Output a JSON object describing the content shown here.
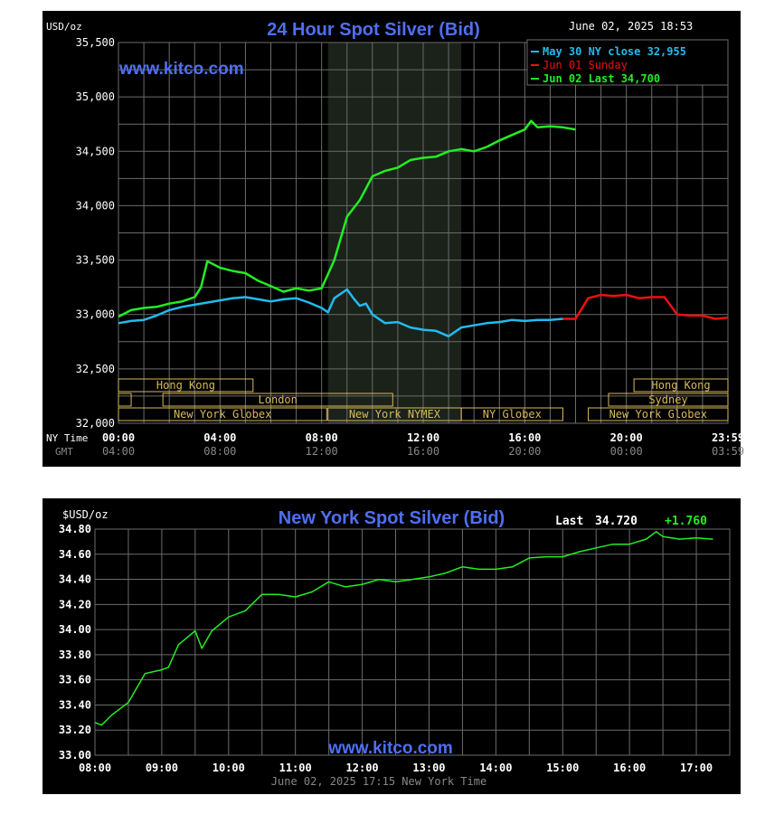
{
  "colors": {
    "background": "#000000",
    "grid": "#6b6b6b",
    "axis_text": "#ffffff",
    "title": "#4f6ff2",
    "watermark": "#4f6ff2",
    "may30": "#22bbee",
    "jun01": "#ee1111",
    "jun02": "#22ee22",
    "session_box": "#d9b95a",
    "session_text": "#d9b95a",
    "shade": "#1a221a",
    "gmt_text": "#888888"
  },
  "chart1": {
    "title": "24 Hour Spot Silver (Bid)",
    "unit": "USD/oz",
    "timestamp": "June 02, 2025 18:53",
    "watermark": "www.kitco.com",
    "legend": [
      {
        "text": "May 30 NY close 32,955",
        "color": "#22bbee"
      },
      {
        "text": "Jun 01 Sunday",
        "color": "#ee1111"
      },
      {
        "text": "Jun 02 Last 34,700",
        "color": "#22ee22"
      }
    ],
    "y_ticks": [
      "35,500",
      "35,000",
      "34,500",
      "34,000",
      "33,500",
      "33,000",
      "32,500",
      "32,000"
    ],
    "x_row1_label": "NY Time",
    "x_row2_label": "GMT",
    "x_ticks_ny": [
      "00:00",
      "04:00",
      "08:00",
      "12:00",
      "16:00",
      "20:00",
      "23:59"
    ],
    "x_ticks_gmt": [
      "04:00",
      "08:00",
      "12:00",
      "16:00",
      "20:00",
      "00:00",
      "03:59"
    ],
    "sessions": [
      {
        "label": "Hong Kong"
      },
      {
        "label": "London"
      },
      {
        "label": "New York Globex"
      },
      {
        "label": "New York NYMEX"
      },
      {
        "label": "NY Globex"
      },
      {
        "label": "Hong Kong"
      },
      {
        "label": "Sydney"
      },
      {
        "label": "New York Globex"
      }
    ]
  },
  "chart2": {
    "title": "New York Spot Silver (Bid)",
    "unit": "$USD/oz",
    "last_label": "Last",
    "last_value": "34.720",
    "change": "+1.760",
    "watermark": "www.kitco.com",
    "footer": "June 02, 2025 17:15 New York Time",
    "y_ticks": [
      "34.80",
      "34.60",
      "34.40",
      "34.20",
      "34.00",
      "33.80",
      "33.60",
      "33.40",
      "33.20",
      "33.00"
    ],
    "x_ticks": [
      "08:00",
      "09:00",
      "10:00",
      "11:00",
      "12:00",
      "13:00",
      "14:00",
      "15:00",
      "16:00",
      "17:00"
    ]
  },
  "chart_data": [
    {
      "type": "line",
      "title": "24 Hour Spot Silver (Bid)",
      "ylabel": "USD/oz",
      "xlabel": "NY Time",
      "ylim": [
        32000,
        35500
      ],
      "xlim": [
        0,
        24
      ],
      "grid": true,
      "legend": "top-right",
      "series": [
        {
          "name": "May 30 NY close 32,955",
          "color": "#22bbee",
          "x": [
            0,
            0.5,
            1,
            1.5,
            2,
            2.5,
            3,
            3.5,
            4,
            4.5,
            5,
            5.5,
            6,
            6.5,
            7,
            7.5,
            8,
            8.25,
            8.5,
            9,
            9.25,
            9.5,
            9.75,
            10,
            10.5,
            11,
            11.5,
            12,
            12.5,
            13,
            13.5,
            14,
            14.5,
            15,
            15.5,
            16,
            16.5,
            17,
            17.5
          ],
          "y": [
            32920,
            32940,
            32950,
            32990,
            33040,
            33070,
            33090,
            33110,
            33130,
            33150,
            33160,
            33140,
            33120,
            33140,
            33150,
            33110,
            33060,
            33020,
            33150,
            33230,
            33150,
            33080,
            33100,
            33000,
            32920,
            32930,
            32880,
            32860,
            32850,
            32800,
            32880,
            32900,
            32920,
            32930,
            32950,
            32940,
            32950,
            32950,
            32960
          ]
        },
        {
          "name": "Jun 01 Sunday",
          "color": "#ee1111",
          "x": [
            17.5,
            18,
            18.5,
            19,
            19.5,
            20,
            20.5,
            21,
            21.5,
            22,
            22.5,
            23,
            23.5,
            24
          ],
          "y": [
            32960,
            32960,
            33150,
            33180,
            33170,
            33180,
            33150,
            33160,
            33160,
            33000,
            32990,
            32990,
            32960,
            32970
          ]
        },
        {
          "name": "Jun 02 Last 34,700",
          "color": "#22ee22",
          "x": [
            0,
            0.5,
            1,
            1.5,
            2,
            2.5,
            3,
            3.25,
            3.5,
            4,
            4.5,
            5,
            5.5,
            6,
            6.5,
            7,
            7.5,
            8,
            8.5,
            9,
            9.5,
            10,
            10.5,
            11,
            11.5,
            12,
            12.5,
            13,
            13.5,
            14,
            14.5,
            15,
            15.5,
            16,
            16.25,
            16.5,
            17,
            17.5,
            18
          ],
          "y": [
            32980,
            33040,
            33060,
            33070,
            33100,
            33120,
            33160,
            33250,
            33490,
            33430,
            33400,
            33380,
            33310,
            33260,
            33210,
            33240,
            33220,
            33240,
            33500,
            33900,
            34050,
            34270,
            34320,
            34350,
            34420,
            34440,
            34450,
            34500,
            34520,
            34500,
            34540,
            34600,
            34650,
            34700,
            34780,
            34720,
            34730,
            34720,
            34700
          ]
        }
      ]
    },
    {
      "type": "line",
      "title": "New York Spot Silver (Bid)",
      "ylabel": "$USD/oz",
      "xlabel": "June 02, 2025 17:15 New York Time",
      "ylim": [
        33.0,
        34.8
      ],
      "xlim": [
        8,
        17.5
      ],
      "grid": true,
      "series": [
        {
          "color": "#22ee22",
          "x": [
            8,
            8.1,
            8.25,
            8.5,
            8.75,
            9,
            9.1,
            9.25,
            9.5,
            9.6,
            9.75,
            10,
            10.25,
            10.5,
            10.75,
            11,
            11.25,
            11.5,
            11.75,
            12,
            12.25,
            12.5,
            12.75,
            13,
            13.25,
            13.5,
            13.75,
            14,
            14.25,
            14.5,
            14.75,
            15,
            15.25,
            15.5,
            15.75,
            16,
            16.25,
            16.4,
            16.5,
            16.75,
            17,
            17.25
          ],
          "y": [
            33.26,
            33.24,
            33.32,
            33.42,
            33.65,
            33.68,
            33.7,
            33.88,
            33.99,
            33.85,
            33.99,
            34.1,
            34.15,
            34.28,
            34.28,
            34.26,
            34.3,
            34.38,
            34.34,
            34.36,
            34.4,
            34.38,
            34.4,
            34.42,
            34.45,
            34.5,
            34.48,
            34.48,
            34.5,
            34.57,
            34.58,
            34.58,
            34.62,
            34.65,
            34.68,
            34.68,
            34.72,
            34.78,
            34.74,
            34.72,
            34.73,
            34.72
          ]
        }
      ]
    }
  ]
}
